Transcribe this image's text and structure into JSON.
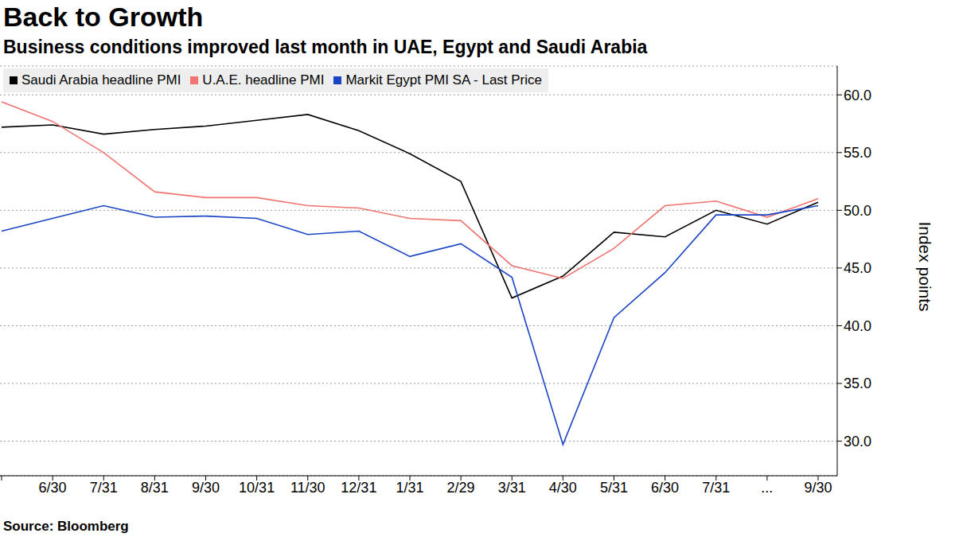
{
  "chart_data": {
    "type": "line",
    "title": "Back to Growth",
    "subtitle": "Business conditions improved last month in UAE, Egypt and Saudi Arabia",
    "y_label": "Index points",
    "source": "Source: Bloomberg",
    "categories": [
      null,
      "6/30",
      "7/31",
      "8/31",
      "9/30",
      "10/31",
      "11/30",
      "12/31",
      "1/31",
      "2/29",
      "3/31",
      "4/30",
      "5/31",
      "6/30",
      "7/31",
      "...",
      "9/30"
    ],
    "series": [
      {
        "name": "Saudi Arabia headline PMI",
        "color": "#000000",
        "values": [
          57.2,
          57.4,
          56.6,
          57.0,
          57.3,
          57.8,
          58.3,
          56.9,
          54.9,
          52.5,
          42.4,
          44.3,
          48.1,
          47.7,
          50.0,
          48.8,
          50.7
        ]
      },
      {
        "name": "U.A.E. headline PMI",
        "color": "#f07470",
        "values": [
          59.4,
          57.7,
          55.0,
          51.6,
          51.1,
          51.1,
          50.4,
          50.2,
          49.3,
          49.1,
          45.2,
          44.1,
          46.7,
          50.4,
          50.8,
          49.4,
          51.0
        ]
      },
      {
        "name": "Markit Egypt PMI SA - Last Price",
        "color": "#1a44c4",
        "values": [
          48.2,
          49.3,
          50.4,
          49.4,
          49.5,
          49.3,
          47.9,
          48.2,
          46.0,
          47.1,
          44.2,
          29.7,
          40.7,
          44.6,
          49.6,
          49.6,
          50.4
        ]
      }
    ],
    "ylim": [
      27,
      62.5
    ],
    "yticks": [
      {
        "value": 30,
        "label": "30.0"
      },
      {
        "value": 35,
        "label": "35.0"
      },
      {
        "value": 40,
        "label": "40.0"
      },
      {
        "value": 45,
        "label": "45.0"
      },
      {
        "value": 50,
        "label": "50.0"
      },
      {
        "value": 55,
        "label": "55.0"
      },
      {
        "value": 60,
        "label": "60.0"
      }
    ],
    "grid": true,
    "legend": "top-left"
  }
}
